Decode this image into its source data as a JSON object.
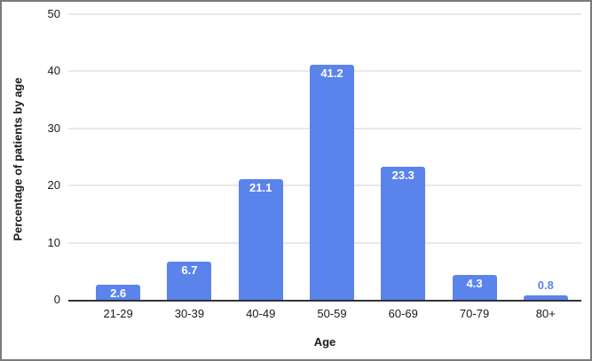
{
  "chart_data": {
    "type": "bar",
    "categories": [
      "21-29",
      "30-39",
      "40-49",
      "50-59",
      "60-69",
      "70-79",
      "80+"
    ],
    "values": [
      2.6,
      6.7,
      21.1,
      41.2,
      23.3,
      4.3,
      0.8
    ],
    "title": "",
    "xlabel": "Age",
    "ylabel": "Percentage of patients by age",
    "ylim": [
      0,
      50
    ],
    "yticks": [
      0,
      10,
      20,
      30,
      40,
      50
    ],
    "grid": true,
    "legend_position": "none",
    "colors": {
      "bar": "#5b83ec",
      "value_label_inside": "#ffffff",
      "value_label_outside": "#5b83ec",
      "gridline": "#e8e8e8",
      "axis_line": "#333333",
      "text": "#1a1a1a",
      "frame_border": "#7a7a7a"
    }
  }
}
